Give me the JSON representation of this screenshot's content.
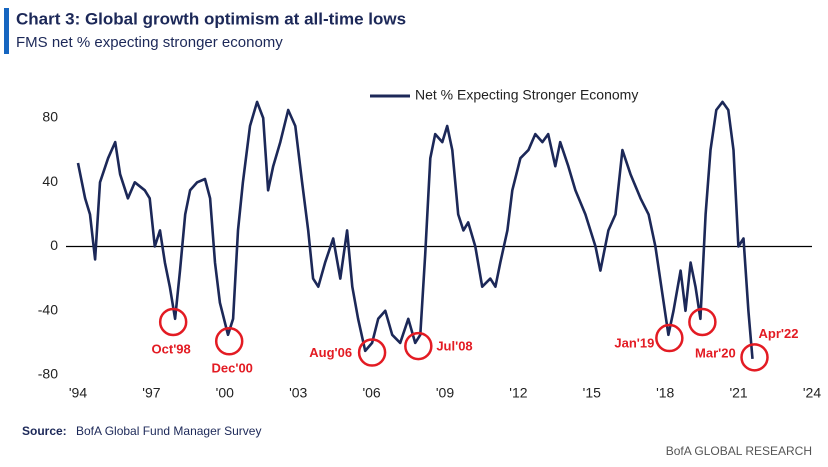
{
  "chart_data": {
    "type": "line",
    "title": "Chart 3: Global growth optimism at all-time lows",
    "subtitle": "FMS net % expecting stronger economy",
    "source_label": "Source:",
    "source": "BofA Global Fund Manager Survey",
    "footer": "BofA GLOBAL RESEARCH",
    "xlim": [
      1994,
      2024
    ],
    "xticks": [
      {
        "value": 1994,
        "label": "'94"
      },
      {
        "value": 1997,
        "label": "'97"
      },
      {
        "value": 2000,
        "label": "'00"
      },
      {
        "value": 2003,
        "label": "'03"
      },
      {
        "value": 2006,
        "label": "'06"
      },
      {
        "value": 2009,
        "label": "'09"
      },
      {
        "value": 2012,
        "label": "'12"
      },
      {
        "value": 2015,
        "label": "'15"
      },
      {
        "value": 2018,
        "label": "'18"
      },
      {
        "value": 2021,
        "label": "'21"
      },
      {
        "value": 2024,
        "label": "'24"
      }
    ],
    "ylim": [
      -80,
      80
    ],
    "yticks": [
      80,
      40,
      0,
      -40,
      -80
    ],
    "legend": "top",
    "x": [
      1994.0,
      1994.29,
      1994.49,
      1994.7,
      1994.9,
      1995.23,
      1995.52,
      1995.72,
      1996.04,
      1996.32,
      1996.73,
      1996.93,
      1997.14,
      1997.35,
      1997.55,
      1997.75,
      1997.97,
      1998.17,
      1998.38,
      1998.58,
      1998.87,
      1999.19,
      1999.4,
      1999.6,
      1999.8,
      2000.13,
      2000.34,
      2000.54,
      2000.74,
      2001.03,
      2001.32,
      2001.57,
      2001.77,
      2001.98,
      2002.27,
      2002.59,
      2002.88,
      2003.16,
      2003.41,
      2003.61,
      2003.82,
      2004.1,
      2004.43,
      2004.72,
      2005.0,
      2005.21,
      2005.45,
      2005.74,
      2006.02,
      2006.27,
      2006.56,
      2006.84,
      2007.17,
      2007.5,
      2007.78,
      2007.99,
      2008.19,
      2008.4,
      2008.6,
      2008.89,
      2009.09,
      2009.3,
      2009.54,
      2009.75,
      2009.95,
      2010.24,
      2010.52,
      2010.85,
      2011.06,
      2011.26,
      2011.55,
      2011.75,
      2012.08,
      2012.41,
      2012.69,
      2012.98,
      2013.22,
      2013.51,
      2013.71,
      2014.04,
      2014.33,
      2014.74,
      2015.15,
      2015.35,
      2015.68,
      2015.97,
      2016.25,
      2016.58,
      2016.99,
      2017.32,
      2017.6,
      2017.89,
      2018.13,
      2018.34,
      2018.63,
      2018.83,
      2019.04,
      2019.24,
      2019.44,
      2019.65,
      2019.85,
      2020.09,
      2020.34,
      2020.58,
      2020.79,
      2020.99,
      2021.2,
      2021.4,
      2021.57
    ],
    "series": [
      {
        "name": "Net % Expecting Stronger Economy",
        "color": "#1c2858",
        "values": [
          52,
          30,
          20,
          -8,
          40,
          55,
          65,
          45,
          30,
          40,
          35,
          30,
          0,
          10,
          -10,
          -25,
          -45,
          -15,
          20,
          35,
          40,
          42,
          30,
          -10,
          -35,
          -55,
          -45,
          10,
          40,
          75,
          90,
          80,
          35,
          50,
          65,
          85,
          75,
          40,
          10,
          -20,
          -25,
          -10,
          5,
          -20,
          10,
          -25,
          -45,
          -65,
          -60,
          -45,
          -40,
          -55,
          -60,
          -45,
          -60,
          -55,
          -5,
          55,
          70,
          65,
          75,
          60,
          20,
          10,
          15,
          0,
          -25,
          -20,
          -25,
          -10,
          10,
          35,
          55,
          60,
          70,
          65,
          70,
          50,
          65,
          50,
          35,
          20,
          0,
          -15,
          10,
          20,
          60,
          45,
          30,
          20,
          0,
          -30,
          -55,
          -40,
          -15,
          -40,
          -10,
          -25,
          -45,
          20,
          60,
          85,
          90,
          85,
          60,
          0,
          5,
          -40,
          -70
        ]
      }
    ],
    "annotation_color": "#e31b23",
    "annotations": [
      {
        "label": "Oct'98",
        "x": 1997.89,
        "y": -47
      },
      {
        "label": "Dec'00",
        "x": 2000.18,
        "y": -59
      },
      {
        "label": "Aug'06",
        "x": 2006.02,
        "y": -66
      },
      {
        "label": "Jul'08",
        "x": 2007.91,
        "y": -62
      },
      {
        "label": "Jan'19",
        "x": 2018.17,
        "y": -57
      },
      {
        "label": "Mar'20",
        "x": 2019.52,
        "y": -47
      },
      {
        "label": "Apr'22",
        "x": 2021.65,
        "y": -69
      }
    ]
  }
}
